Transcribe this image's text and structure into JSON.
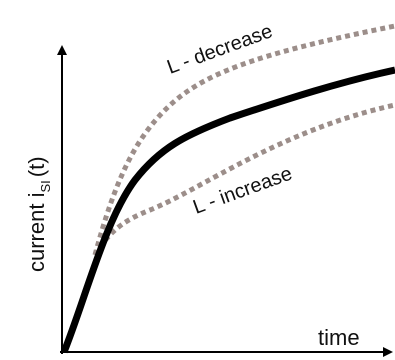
{
  "curves": {
    "decrease": {
      "label": "L - decrease"
    },
    "increase": {
      "label": "L - increase"
    }
  },
  "axes": {
    "y_label": {
      "main": "current i",
      "subscript": "SI",
      "suffix": "(t)"
    },
    "x_label": "time"
  }
}
